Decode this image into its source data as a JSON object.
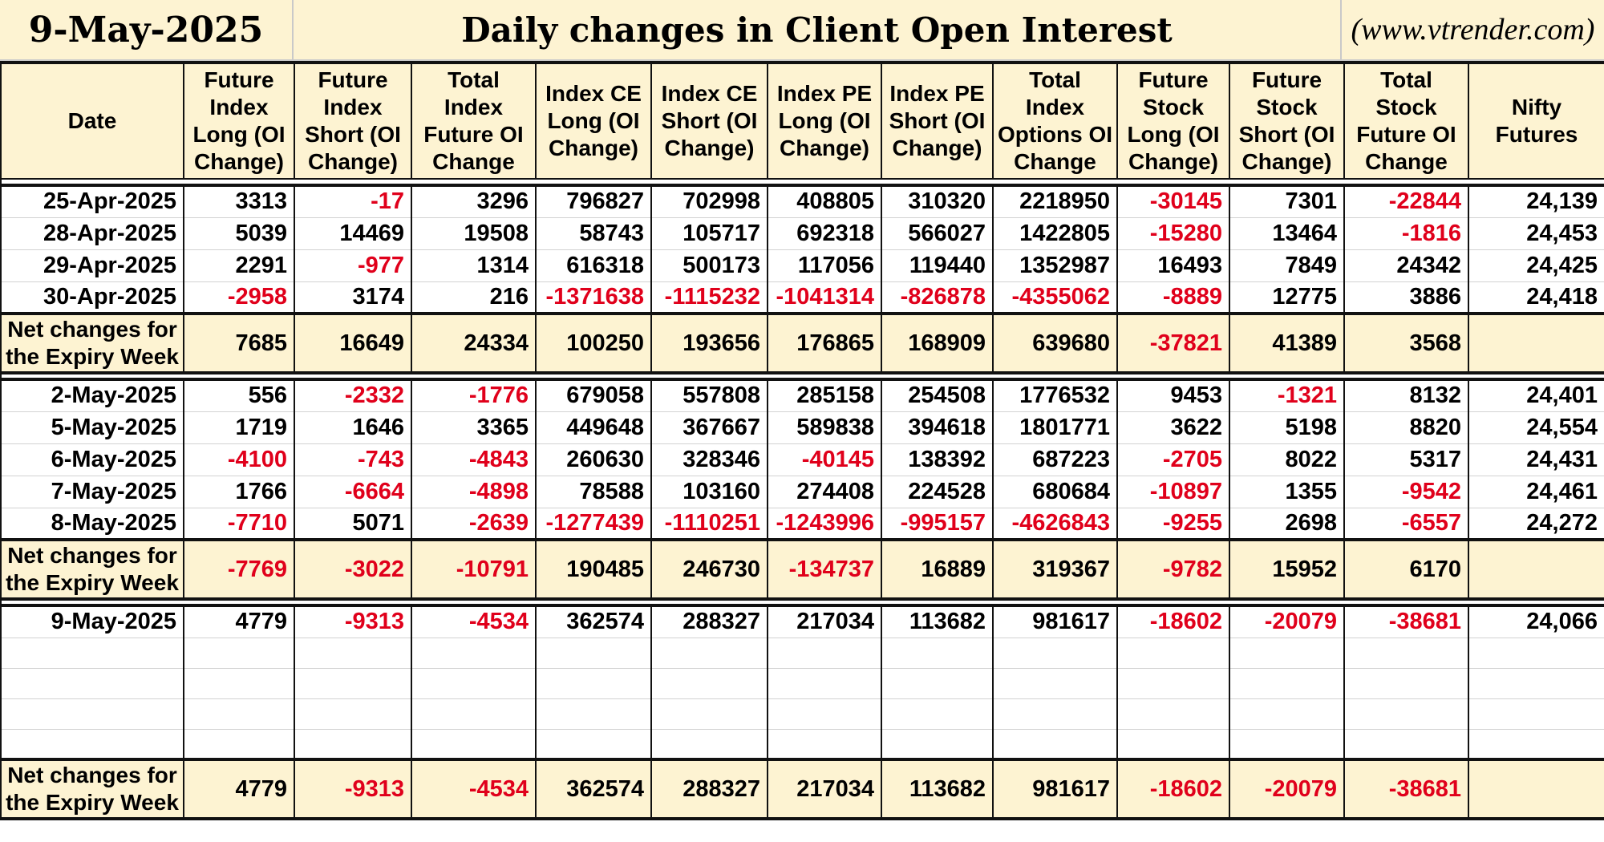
{
  "header": {
    "date": "9-May-2025",
    "title": "Daily changes in Client Open Interest",
    "source": "(www.vtrender.com)"
  },
  "columns": [
    "Date",
    "Future Index Long (OI Change)",
    "Future Index Short (OI Change)",
    "Total Index Future OI Change",
    "Index CE Long (OI Change)",
    "Index CE Short (OI Change)",
    "Index PE Long (OI Change)",
    "Index PE Short (OI Change)",
    "Total Index Options OI Change",
    "Future Stock Long (OI Change)",
    "Future Stock Short (OI Change)",
    "Total Stock Future OI Change",
    "Nifty Futures"
  ],
  "net_label": "Net changes for the Expiry Week",
  "colors": {
    "header_bg": "#fdf3d2",
    "negative": "#e0001b",
    "positive": "#000000",
    "border": "#111111"
  },
  "groups": [
    {
      "rows": [
        [
          "25-Apr-2025",
          "3313",
          "-17",
          "3296",
          "796827",
          "702998",
          "408805",
          "310320",
          "2218950",
          "-30145",
          "7301",
          "-22844",
          "24,139"
        ],
        [
          "28-Apr-2025",
          "5039",
          "14469",
          "19508",
          "58743",
          "105717",
          "692318",
          "566027",
          "1422805",
          "-15280",
          "13464",
          "-1816",
          "24,453"
        ],
        [
          "29-Apr-2025",
          "2291",
          "-977",
          "1314",
          "616318",
          "500173",
          "117056",
          "119440",
          "1352987",
          "16493",
          "7849",
          "24342",
          "24,425"
        ],
        [
          "30-Apr-2025",
          "-2958",
          "3174",
          "216",
          "-1371638",
          "-1115232",
          "-1041314",
          "-826878",
          "-4355062",
          "-8889",
          "12775",
          "3886",
          "24,418"
        ]
      ],
      "net": [
        "7685",
        "16649",
        "24334",
        "100250",
        "193656",
        "176865",
        "168909",
        "639680",
        "-37821",
        "41389",
        "3568",
        ""
      ]
    },
    {
      "rows": [
        [
          "2-May-2025",
          "556",
          "-2332",
          "-1776",
          "679058",
          "557808",
          "285158",
          "254508",
          "1776532",
          "9453",
          "-1321",
          "8132",
          "24,401"
        ],
        [
          "5-May-2025",
          "1719",
          "1646",
          "3365",
          "449648",
          "367667",
          "589838",
          "394618",
          "1801771",
          "3622",
          "5198",
          "8820",
          "24,554"
        ],
        [
          "6-May-2025",
          "-4100",
          "-743",
          "-4843",
          "260630",
          "328346",
          "-40145",
          "138392",
          "687223",
          "-2705",
          "8022",
          "5317",
          "24,431"
        ],
        [
          "7-May-2025",
          "1766",
          "-6664",
          "-4898",
          "78588",
          "103160",
          "274408",
          "224528",
          "680684",
          "-10897",
          "1355",
          "-9542",
          "24,461"
        ],
        [
          "8-May-2025",
          "-7710",
          "5071",
          "-2639",
          "-1277439",
          "-1110251",
          "-1243996",
          "-995157",
          "-4626843",
          "-9255",
          "2698",
          "-6557",
          "24,272"
        ]
      ],
      "net": [
        "-7769",
        "-3022",
        "-10791",
        "190485",
        "246730",
        "-134737",
        "16889",
        "319367",
        "-9782",
        "15952",
        "6170",
        ""
      ]
    },
    {
      "rows": [
        [
          "9-May-2025",
          "4779",
          "-9313",
          "-4534",
          "362574",
          "288327",
          "217034",
          "113682",
          "981617",
          "-18602",
          "-20079",
          "-38681",
          "24,066"
        ],
        [
          "",
          "",
          "",
          "",
          "",
          "",
          "",
          "",
          "",
          "",
          "",
          "",
          ""
        ],
        [
          "",
          "",
          "",
          "",
          "",
          "",
          "",
          "",
          "",
          "",
          "",
          "",
          ""
        ],
        [
          "",
          "",
          "",
          "",
          "",
          "",
          "",
          "",
          "",
          "",
          "",
          "",
          ""
        ],
        [
          "",
          "",
          "",
          "",
          "",
          "",
          "",
          "",
          "",
          "",
          "",
          "",
          ""
        ]
      ],
      "net": [
        "4779",
        "-9313",
        "-4534",
        "362574",
        "288327",
        "217034",
        "113682",
        "981617",
        "-18602",
        "-20079",
        "-38681",
        ""
      ]
    }
  ]
}
